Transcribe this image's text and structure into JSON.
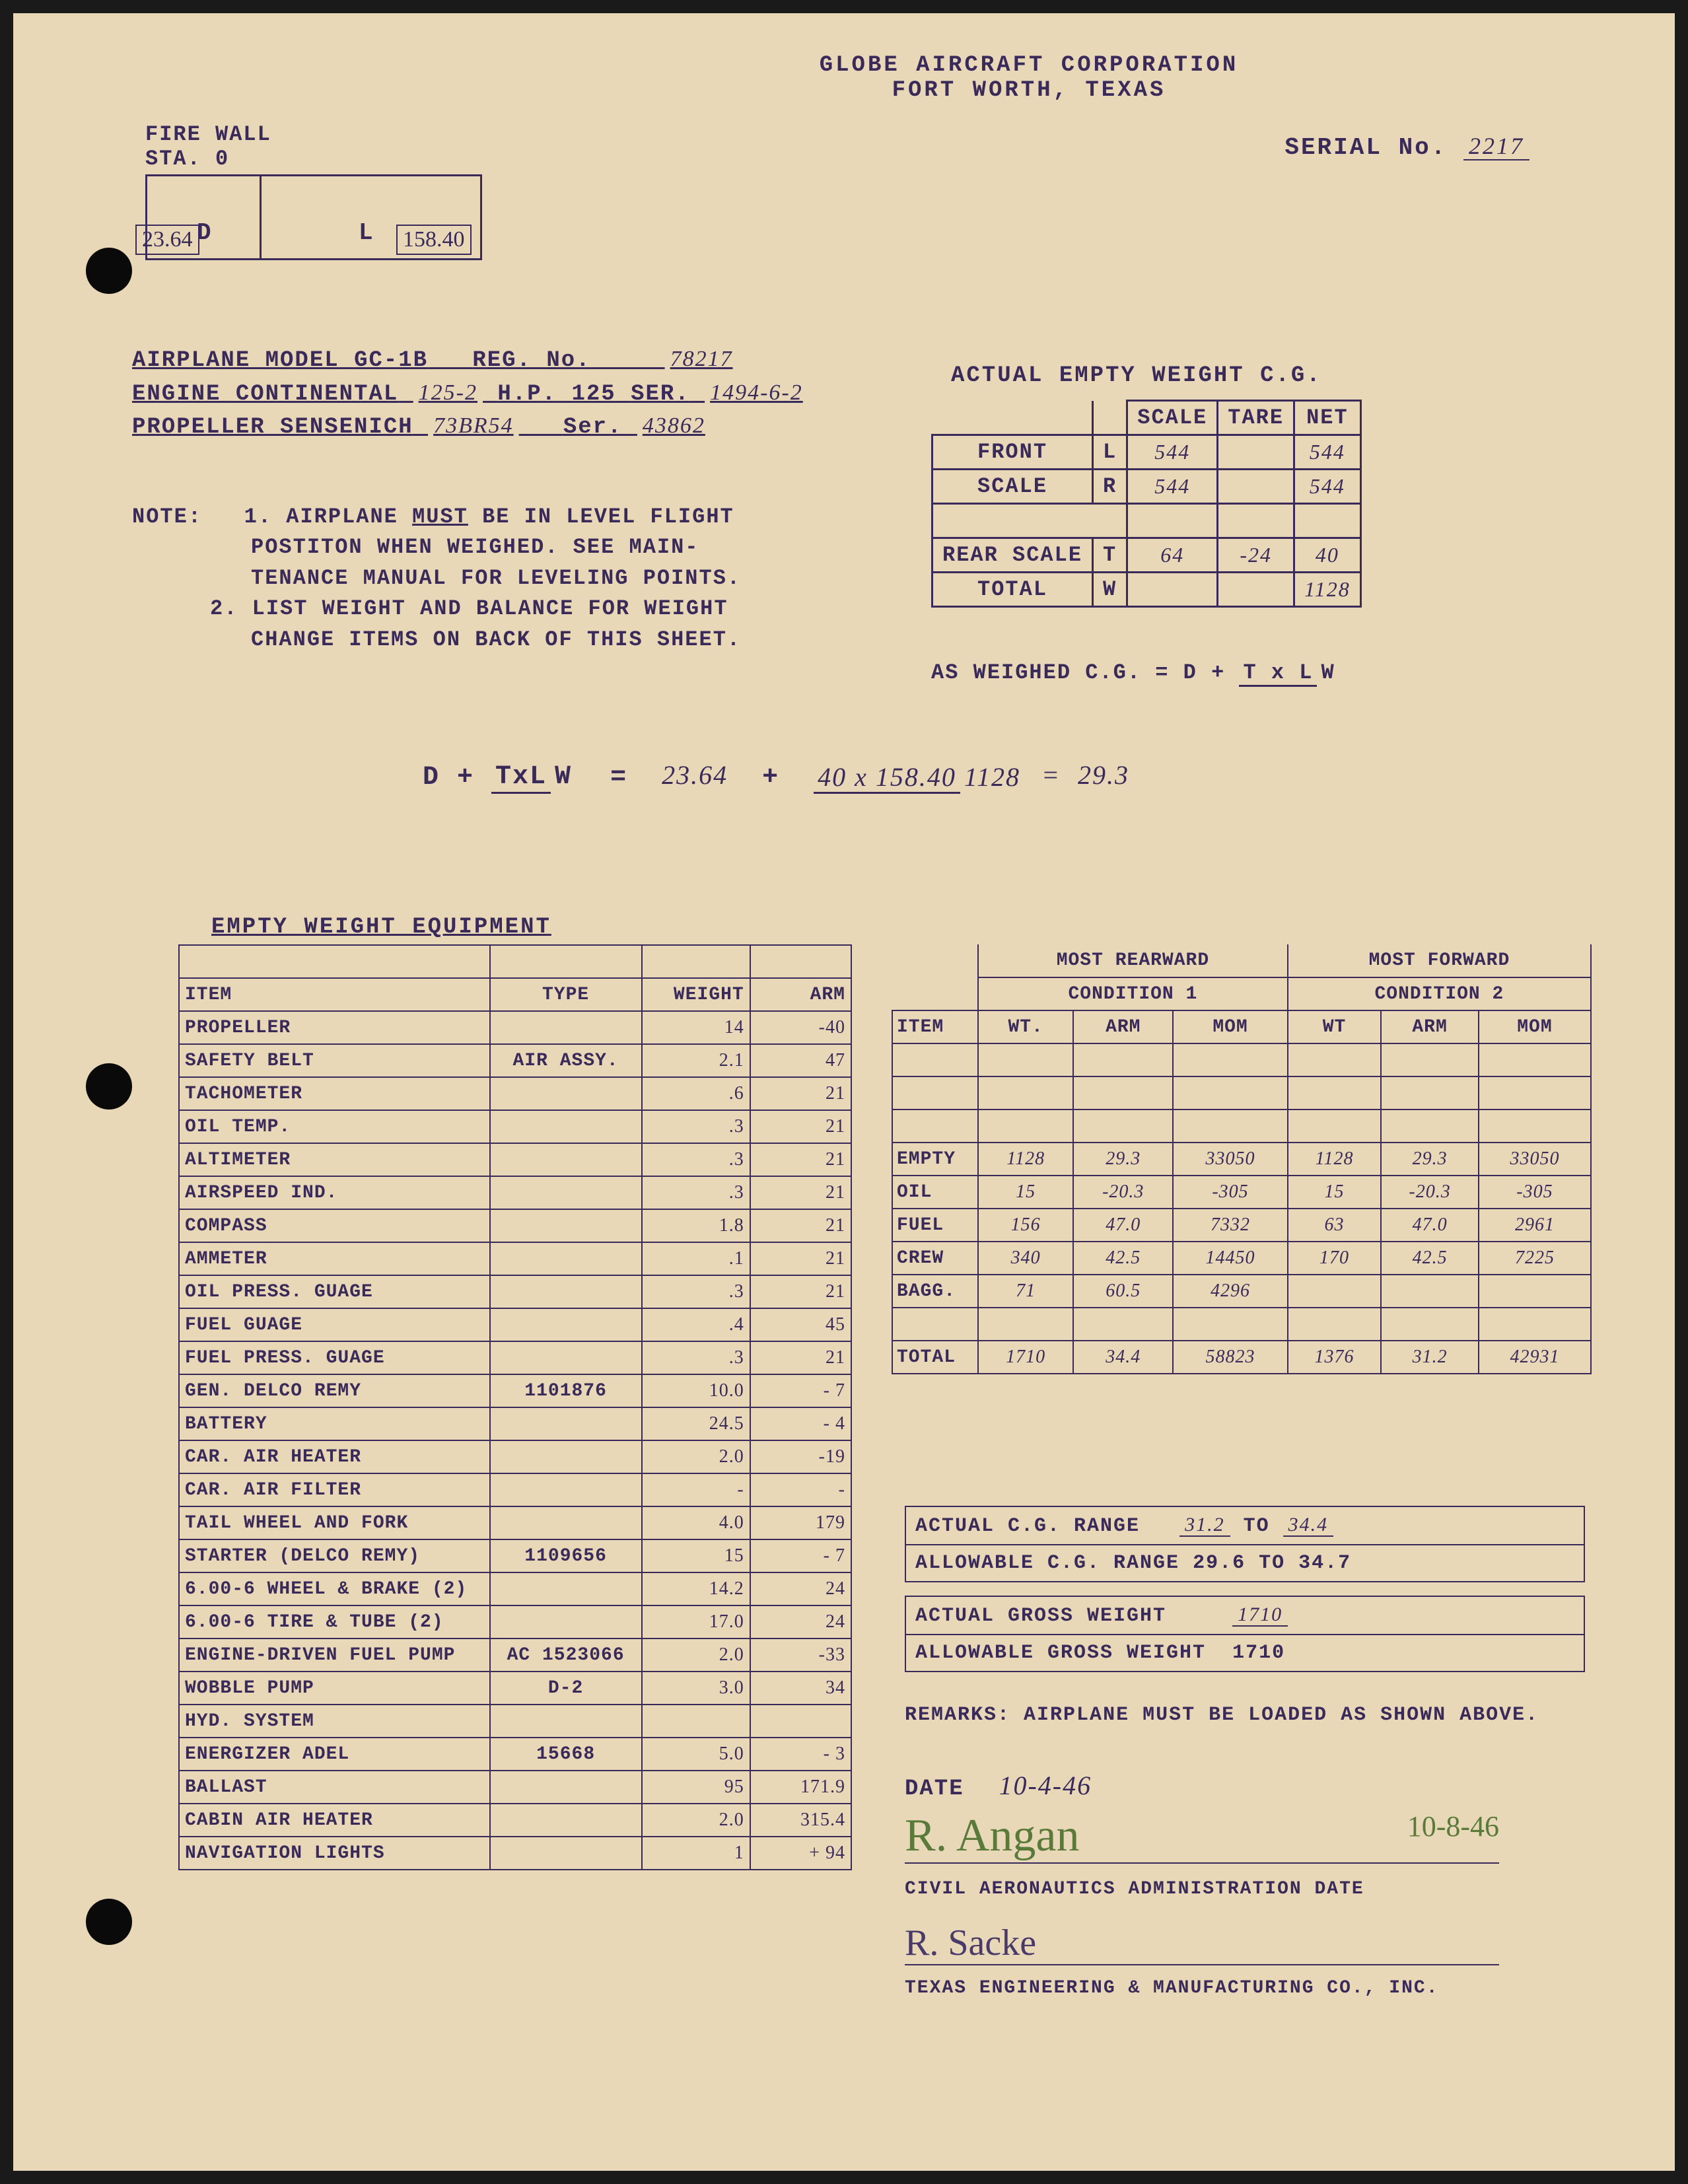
{
  "corp": {
    "name": "GLOBE AIRCRAFT CORPORATION",
    "city": "FORT WORTH, TEXAS"
  },
  "firewall": {
    "label": "FIRE WALL",
    "sta": "STA. 0",
    "d": "D",
    "l": "L",
    "dim_d": "23.64",
    "dim_l": "158.40"
  },
  "serial": {
    "label": "SERIAL No.",
    "value": "2217"
  },
  "model": {
    "airplane_label": "AIRPLANE MODEL",
    "airplane": "GC-1B",
    "reg_label": "REG. No.",
    "reg": "78217",
    "engine_label": "ENGINE CONTINENTAL",
    "engine_model": "125-2",
    "hp_label": "H.P.",
    "hp": "125",
    "ser_label": "SER.",
    "engine_ser": "1494-6-2",
    "prop_label": "PROPELLER SENSENICH",
    "prop_model": "73BR54",
    "prop_ser_label": "Ser.",
    "prop_ser": "43862"
  },
  "cg_title": "ACTUAL EMPTY WEIGHT C.G.",
  "cg": {
    "cols": [
      "",
      "",
      "SCALE",
      "TARE",
      "NET"
    ],
    "rows": [
      {
        "a": "FRONT",
        "b": "L",
        "scale": "544",
        "tare": "",
        "net": "544"
      },
      {
        "a": "SCALE",
        "b": "R",
        "scale": "544",
        "tare": "",
        "net": "544"
      },
      {
        "a": "",
        "b": "",
        "scale": "",
        "tare": "",
        "net": ""
      },
      {
        "a": "REAR SCALE",
        "b": "T",
        "scale": "64",
        "tare": "-24",
        "net": "40"
      },
      {
        "a": "TOTAL",
        "b": "W",
        "scale": "",
        "tare": "",
        "net": "1128"
      }
    ]
  },
  "notes": {
    "label": "NOTE:",
    "n1a": "1.  AIRPLANE",
    "n1b": "MUST",
    "n1c": "BE IN LEVEL FLIGHT",
    "n1d": "POSTITON WHEN WEIGHED.  SEE MAIN-",
    "n1e": "TENANCE MANUAL FOR LEVELING POINTS.",
    "n2a": "2.  LIST WEIGHT AND BALANCE FOR WEIGHT",
    "n2b": "CHANGE ITEMS ON BACK OF THIS SHEET."
  },
  "as_weighed": "AS WEIGHED C.G.     = D +",
  "formula": {
    "d": "D  +",
    "txl": "TxL",
    "w": "W",
    "eq": "=",
    "d_val": "23.64",
    "plus": "+",
    "num": "40 x 158.40",
    "den": "1128",
    "eq2": "=",
    "result": "29.3"
  },
  "equip_title": "EMPTY WEIGHT EQUIPMENT",
  "equip": {
    "headers": [
      "ITEM",
      "TYPE",
      "WEIGHT",
      "ARM"
    ],
    "rows": [
      [
        "PROPELLER",
        "",
        "14",
        "-40"
      ],
      [
        "SAFETY BELT",
        "AIR ASSY.",
        "2.1",
        "47"
      ],
      [
        "TACHOMETER",
        "",
        ".6",
        "21"
      ],
      [
        "OIL TEMP.",
        "",
        ".3",
        "21"
      ],
      [
        "ALTIMETER",
        "",
        ".3",
        "21"
      ],
      [
        "AIRSPEED IND.",
        "",
        ".3",
        "21"
      ],
      [
        "COMPASS",
        "",
        "1.8",
        "21"
      ],
      [
        "AMMETER",
        "",
        ".1",
        "21"
      ],
      [
        "OIL PRESS. GUAGE",
        "",
        ".3",
        "21"
      ],
      [
        "FUEL GUAGE",
        "",
        ".4",
        "45"
      ],
      [
        "FUEL PRESS. GUAGE",
        "",
        ".3",
        "21"
      ],
      [
        "GEN. DELCO REMY",
        "1101876",
        "10.0",
        "- 7"
      ],
      [
        "BATTERY",
        "",
        "24.5",
        "- 4"
      ],
      [
        "CAR. AIR HEATER",
        "",
        "2.0",
        "-19"
      ],
      [
        "CAR. AIR FILTER",
        "",
        "-",
        "-"
      ],
      [
        "TAIL WHEEL AND FORK",
        "",
        "4.0",
        "179"
      ],
      [
        "STARTER (DELCO REMY)",
        "1109656",
        "15",
        "- 7"
      ],
      [
        "6.00-6 WHEEL & BRAKE (2)",
        "",
        "14.2",
        "24"
      ],
      [
        "6.00-6 TIRE & TUBE (2)",
        "",
        "17.0",
        "24"
      ],
      [
        "ENGINE-DRIVEN FUEL PUMP",
        "AC 1523066",
        "2.0",
        "-33"
      ],
      [
        "WOBBLE PUMP",
        "D-2",
        "3.0",
        "34"
      ],
      [
        "HYD. SYSTEM",
        "",
        "",
        ""
      ],
      [
        "ENERGIZER ADEL",
        "15668",
        "5.0",
        "- 3"
      ],
      [
        "BALLAST",
        "",
        "95",
        "171.9"
      ],
      [
        "CABIN AIR HEATER",
        "",
        "2.0",
        "315.4"
      ],
      [
        "NAVIGATION LIGHTS",
        "",
        "1",
        "+ 94"
      ]
    ]
  },
  "cond": {
    "rear_title": "MOST REARWARD",
    "fwd_title": "MOST FORWARD",
    "cond1": "CONDITION 1",
    "cond2": "CONDITION 2",
    "sub": [
      "ITEM",
      "WT.",
      "ARM",
      "MOM",
      "WT",
      "ARM",
      "MOM"
    ],
    "rows": [
      [
        "",
        "",
        "",
        "",
        "",
        "",
        ""
      ],
      [
        "",
        "",
        "",
        "",
        "",
        "",
        ""
      ],
      [
        "",
        "",
        "",
        "",
        "",
        "",
        ""
      ],
      [
        "EMPTY",
        "1128",
        "29.3",
        "33050",
        "1128",
        "29.3",
        "33050"
      ],
      [
        "OIL",
        "15",
        "-20.3",
        "-305",
        "15",
        "-20.3",
        "-305"
      ],
      [
        "FUEL",
        "156",
        "47.0",
        "7332",
        "63",
        "47.0",
        "2961"
      ],
      [
        "CREW",
        "340",
        "42.5",
        "14450",
        "170",
        "42.5",
        "7225"
      ],
      [
        "BAGG.",
        "71",
        "60.5",
        "4296",
        "",
        "",
        ""
      ],
      [
        "",
        "",
        "",
        "",
        "",
        "",
        ""
      ],
      [
        "TOTAL",
        "1710",
        "34.4",
        "58823",
        "1376",
        "31.2",
        "42931"
      ]
    ]
  },
  "summary": {
    "actual_cg": "ACTUAL C.G. RANGE",
    "actual_cg_from": "31.2",
    "to": "TO",
    "actual_cg_to": "34.4",
    "allow_cg": "ALLOWABLE C.G. RANGE",
    "allow_cg_from": "29.6",
    "allow_cg_to": "34.7",
    "actual_gw": "ACTUAL GROSS WEIGHT",
    "actual_gw_val": "1710",
    "allow_gw": "ALLOWABLE GROSS WEIGHT",
    "allow_gw_val": "1710"
  },
  "remarks": {
    "label": "REMARKS:",
    "text": "AIRPLANE MUST BE LOADED AS SHOWN ABOVE."
  },
  "date": {
    "label": "DATE",
    "value": "10-4-46"
  },
  "sig1": {
    "name": "R. Angan",
    "date": "10-8-46"
  },
  "caa": "CIVIL AERONAUTICS ADMINISTRATION    DATE",
  "sig2": "R. Sacke",
  "texco": "TEXAS ENGINEERING & MANUFACTURING CO., INC."
}
